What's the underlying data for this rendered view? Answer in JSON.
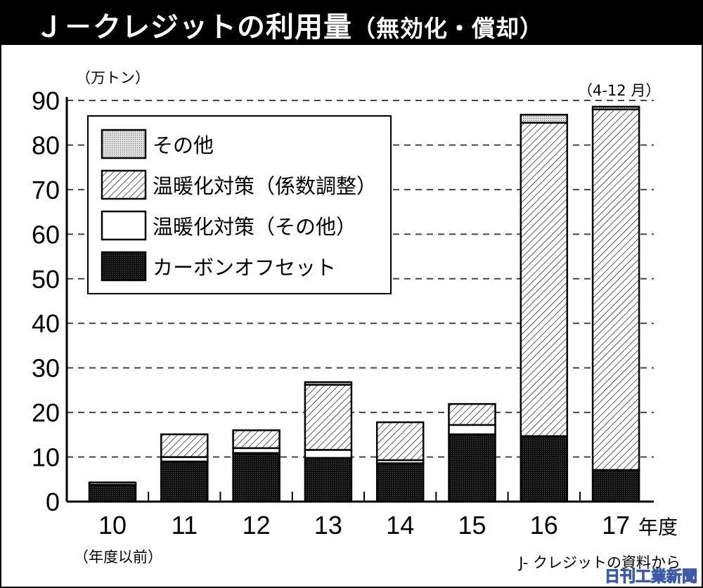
{
  "chart_data": {
    "type": "bar",
    "stacked": true,
    "title": "Ｊ－クレジットの利用量",
    "subtitle": "（無効化・償却）",
    "ylabel": "（万トン）",
    "xlabel": "年度",
    "ylim": [
      0,
      90
    ],
    "yticks": [
      0,
      10,
      20,
      30,
      40,
      50,
      60,
      70,
      80,
      90
    ],
    "grid": true,
    "legend_position": "top-left",
    "categories": [
      "10",
      "11",
      "12",
      "13",
      "14",
      "15",
      "16",
      "17"
    ],
    "category_notes": {
      "10": "（年度以前）",
      "17": "（4-12 月）"
    },
    "series": [
      {
        "name": "カーボンオフセット",
        "values": [
          3.8,
          9.0,
          10.9,
          9.8,
          8.6,
          15.1,
          14.7,
          7.1
        ],
        "pattern": "dark"
      },
      {
        "name": "温暖化対策（その他）",
        "values": [
          0.5,
          1.0,
          1.1,
          1.8,
          0.7,
          2.1,
          0,
          0
        ],
        "pattern": "white"
      },
      {
        "name": "温暖化対策（係数調整）",
        "values": [
          0,
          5.1,
          4.0,
          14.6,
          8.5,
          4.7,
          70.3,
          80.9
        ],
        "pattern": "hatch"
      },
      {
        "name": "その他",
        "values": [
          0,
          0,
          0,
          0.6,
          0,
          0,
          1.8,
          0.6
        ],
        "pattern": "dots"
      }
    ],
    "legend_order": [
      3,
      2,
      1,
      0
    ],
    "source": "J- クレジットの資料から"
  },
  "watermark": "日刊工業新聞"
}
